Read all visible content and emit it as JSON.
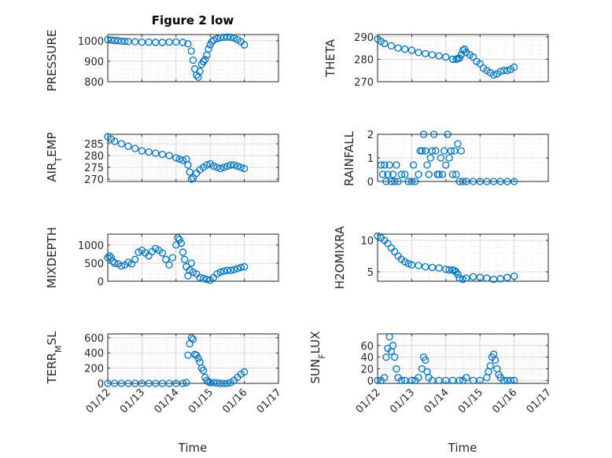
{
  "figure": {
    "title": "Figure 2 low",
    "xlabel_left": "Time",
    "xlabel_right": "Time",
    "marker_color": "#0072BD",
    "grid": true,
    "x_ticks": [
      "01/12",
      "01/13",
      "01/14",
      "01/15",
      "01/16",
      "01/17"
    ]
  },
  "chart_data": [
    {
      "type": "scatter",
      "ylabel": "PRESSURE",
      "ylim": [
        800,
        1030
      ],
      "yticks": [
        800,
        900,
        1000
      ],
      "xlim": [
        12,
        17
      ],
      "x": [
        12.0,
        12.1,
        12.2,
        12.3,
        12.4,
        12.5,
        12.6,
        12.8,
        13.0,
        13.2,
        13.4,
        13.6,
        13.8,
        14.0,
        14.2,
        14.35,
        14.45,
        14.5,
        14.55,
        14.6,
        14.65,
        14.7,
        14.75,
        14.8,
        14.85,
        14.9,
        14.95,
        15.0,
        15.05,
        15.1,
        15.2,
        15.3,
        15.4,
        15.5,
        15.6,
        15.7,
        15.8,
        15.9,
        16.0
      ],
      "y": [
        1005,
        1003,
        1001,
        1000,
        998,
        997,
        996,
        995,
        993,
        993,
        992,
        992,
        993,
        994,
        992,
        985,
        950,
        905,
        862,
        832,
        822,
        850,
        885,
        898,
        908,
        930,
        960,
        980,
        995,
        1003,
        1010,
        1015,
        1017,
        1018,
        1017,
        1013,
        1005,
        995,
        980
      ]
    },
    {
      "type": "scatter",
      "ylabel": "THETA",
      "ylim": [
        270,
        291
      ],
      "yticks": [
        270,
        280,
        290
      ],
      "xlim": [
        12,
        17
      ],
      "x": [
        12.0,
        12.1,
        12.2,
        12.4,
        12.6,
        12.8,
        13.0,
        13.2,
        13.4,
        13.6,
        13.8,
        14.0,
        14.2,
        14.3,
        14.35,
        14.4,
        14.45,
        14.5,
        14.55,
        14.6,
        14.7,
        14.8,
        14.9,
        15.0,
        15.1,
        15.2,
        15.3,
        15.4,
        15.5,
        15.6,
        15.7,
        15.8,
        15.9,
        16.0
      ],
      "y": [
        289,
        288,
        287,
        286,
        285,
        284.5,
        284,
        283,
        282.5,
        282,
        281.5,
        281,
        280,
        280,
        280.3,
        280.5,
        282,
        284,
        284.5,
        283,
        282,
        281,
        279,
        278,
        276,
        275,
        274,
        273,
        273.5,
        274.5,
        275,
        275,
        275.5,
        276.5
      ]
    },
    {
      "type": "scatter",
      "ylabel": "AIR_TEMP",
      "ylim": [
        269,
        289
      ],
      "yticks": [
        270,
        275,
        280,
        285
      ],
      "xlim": [
        12,
        17
      ],
      "x": [
        12.0,
        12.1,
        12.2,
        12.4,
        12.6,
        12.8,
        13.0,
        13.2,
        13.4,
        13.6,
        13.8,
        14.0,
        14.1,
        14.2,
        14.3,
        14.35,
        14.4,
        14.45,
        14.5,
        14.6,
        14.7,
        14.8,
        14.9,
        15.0,
        15.1,
        15.2,
        15.3,
        15.4,
        15.5,
        15.6,
        15.7,
        15.8,
        15.9,
        16.0
      ],
      "y": [
        288,
        287,
        286,
        285,
        284,
        283,
        282,
        281.5,
        281,
        280.5,
        280,
        279,
        278.5,
        278,
        278.5,
        276,
        273,
        270,
        270.5,
        272.5,
        274,
        275,
        276,
        276.5,
        275.5,
        275,
        274.5,
        275,
        275.5,
        276,
        276,
        275.5,
        275,
        274.5
      ]
    },
    {
      "type": "scatter",
      "ylabel": "RAINFALL",
      "ylim": [
        0,
        2
      ],
      "yticks": [
        0,
        1,
        2
      ],
      "xlim": [
        12,
        17
      ],
      "x": [
        12.1,
        12.15,
        12.2,
        12.25,
        12.3,
        12.35,
        12.4,
        12.45,
        12.5,
        12.55,
        12.6,
        12.7,
        12.8,
        12.9,
        13.0,
        13.05,
        13.1,
        13.2,
        13.25,
        13.3,
        13.35,
        13.4,
        13.45,
        13.5,
        13.55,
        13.6,
        13.65,
        13.7,
        13.75,
        13.8,
        13.85,
        13.9,
        13.95,
        14.0,
        14.05,
        14.1,
        14.15,
        14.2,
        14.25,
        14.3,
        14.35,
        14.4,
        14.45,
        14.5,
        14.6,
        14.8,
        15.0,
        15.2,
        15.4,
        15.6,
        15.8,
        16.0
      ],
      "y": [
        0.7,
        0.3,
        0.7,
        0,
        0.3,
        0.7,
        0,
        0.3,
        0,
        0.7,
        0,
        0.3,
        0.3,
        0,
        0,
        0.7,
        0,
        0.3,
        1.3,
        1.3,
        2,
        1.3,
        0.7,
        0.3,
        1,
        1.3,
        2,
        1.3,
        0.3,
        0.3,
        1,
        0.3,
        1.3,
        0.7,
        2,
        1,
        1.3,
        0.3,
        1.3,
        0.3,
        1.6,
        0,
        1.3,
        0,
        0,
        0,
        0,
        0,
        0,
        0,
        0,
        0
      ]
    },
    {
      "type": "scatter",
      "ylabel": "MIXDEPTH",
      "ylim": [
        0,
        1300
      ],
      "yticks": [
        0,
        500,
        1000
      ],
      "xlim": [
        12,
        17
      ],
      "x": [
        12.0,
        12.05,
        12.1,
        12.15,
        12.2,
        12.3,
        12.4,
        12.5,
        12.6,
        12.7,
        12.8,
        12.9,
        13.0,
        13.1,
        13.2,
        13.3,
        13.4,
        13.5,
        13.6,
        13.7,
        13.8,
        13.9,
        14.0,
        14.05,
        14.1,
        14.15,
        14.2,
        14.25,
        14.3,
        14.35,
        14.4,
        14.45,
        14.5,
        14.6,
        14.7,
        14.8,
        14.9,
        15.0,
        15.1,
        15.2,
        15.3,
        15.4,
        15.5,
        15.6,
        15.7,
        15.8,
        15.9,
        16.0
      ],
      "y": [
        650,
        700,
        650,
        550,
        500,
        480,
        420,
        450,
        520,
        480,
        600,
        800,
        850,
        780,
        700,
        820,
        900,
        850,
        780,
        600,
        450,
        650,
        1000,
        1200,
        1150,
        1050,
        800,
        600,
        400,
        150,
        300,
        500,
        250,
        200,
        100,
        80,
        50,
        30,
        100,
        200,
        250,
        280,
        300,
        300,
        320,
        350,
        380,
        400
      ]
    },
    {
      "type": "scatter",
      "ylabel": "H2OMIXRA",
      "ylim": [
        3.5,
        11
      ],
      "yticks": [
        5,
        10
      ],
      "xlim": [
        12,
        17
      ],
      "x": [
        12.0,
        12.1,
        12.2,
        12.3,
        12.4,
        12.5,
        12.6,
        12.7,
        12.8,
        12.9,
        13.0,
        13.2,
        13.4,
        13.6,
        13.8,
        14.0,
        14.1,
        14.2,
        14.25,
        14.3,
        14.35,
        14.4,
        14.5,
        14.6,
        14.8,
        15.0,
        15.2,
        15.4,
        15.6,
        15.8,
        16.0
      ],
      "y": [
        10.7,
        10.4,
        10,
        9.5,
        8.8,
        8.2,
        7.5,
        7,
        6.6,
        6.3,
        6.1,
        6,
        5.8,
        5.7,
        5.6,
        5.4,
        5.3,
        5.3,
        5.2,
        5,
        4.6,
        4,
        3.8,
        4,
        4.2,
        4.1,
        4,
        3.8,
        3.9,
        4.1,
        4.3
      ]
    },
    {
      "type": "scatter",
      "ylabel": "TERR_MSL",
      "ylim": [
        0,
        650
      ],
      "yticks": [
        0,
        200,
        400,
        600
      ],
      "xlim": [
        12,
        17
      ],
      "x": [
        12.0,
        12.2,
        12.4,
        12.6,
        12.8,
        13.0,
        13.2,
        13.4,
        13.6,
        13.8,
        14.0,
        14.2,
        14.3,
        14.35,
        14.4,
        14.45,
        14.5,
        14.55,
        14.6,
        14.65,
        14.7,
        14.75,
        14.8,
        14.85,
        14.9,
        14.95,
        15.0,
        15.1,
        15.2,
        15.3,
        15.4,
        15.5,
        15.6,
        15.7,
        15.8,
        15.9,
        16.0
      ],
      "y": [
        0,
        0,
        0,
        0,
        0,
        0,
        0,
        0,
        0,
        0,
        0,
        0,
        10,
        370,
        520,
        600,
        580,
        380,
        370,
        330,
        280,
        200,
        170,
        80,
        40,
        20,
        10,
        10,
        5,
        0,
        0,
        0,
        10,
        40,
        80,
        120,
        150
      ]
    },
    {
      "type": "scatter",
      "ylabel": "SUN_FLUX",
      "ylim": [
        -5,
        80
      ],
      "yticks": [
        0,
        20,
        40,
        60
      ],
      "xlim": [
        12,
        17
      ],
      "x": [
        12.0,
        12.1,
        12.2,
        12.25,
        12.3,
        12.35,
        12.4,
        12.45,
        12.5,
        12.55,
        12.6,
        12.7,
        12.8,
        13.0,
        13.1,
        13.2,
        13.3,
        13.35,
        13.4,
        13.45,
        13.5,
        13.6,
        13.8,
        14.0,
        14.2,
        14.4,
        14.5,
        14.6,
        14.8,
        15.0,
        15.2,
        15.25,
        15.3,
        15.35,
        15.4,
        15.45,
        15.5,
        15.55,
        15.6,
        15.7,
        15.8,
        15.9,
        16.0
      ],
      "y": [
        0,
        0,
        5,
        40,
        55,
        75,
        50,
        60,
        40,
        20,
        5,
        0,
        0,
        0,
        0,
        5,
        20,
        40,
        35,
        15,
        5,
        0,
        0,
        0,
        0,
        0,
        0,
        5,
        0,
        0,
        5,
        15,
        25,
        40,
        45,
        35,
        20,
        10,
        5,
        0,
        0,
        0,
        0
      ]
    }
  ]
}
